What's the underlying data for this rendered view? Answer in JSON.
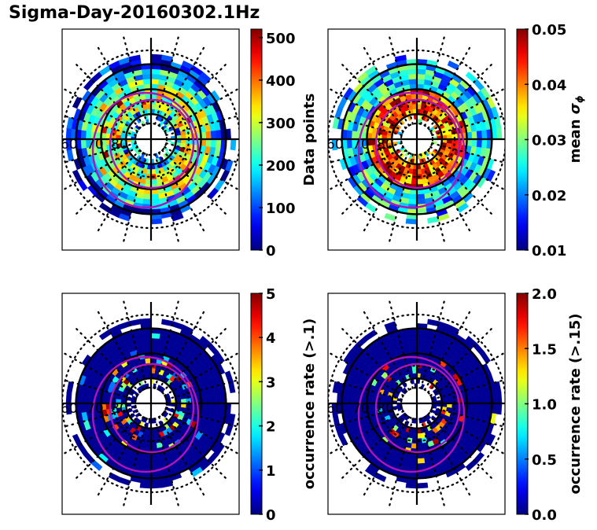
{
  "title": "Sigma-Day-20160302.1Hz",
  "chart_data": [
    {
      "type": "heatmap",
      "projection": "polar (MLAT/MLT dial)",
      "panel": "top-left",
      "lat_labels": [
        "60",
        "70",
        "80"
      ],
      "colorbar": {
        "label": "Data points",
        "min": 0,
        "max": 520,
        "ticks": [
          "0",
          "100",
          "200",
          "300",
          "400",
          "500"
        ],
        "tick_values": [
          0,
          100,
          200,
          300,
          400,
          500
        ],
        "colormap": "jet"
      },
      "mag_rings": true,
      "pattern": "ring of bins between ~57° and ~85° latitude; counts mostly 50–300, peaks ~400–500 near 70–75° on dusk/dawn sides",
      "seed": 1
    },
    {
      "type": "heatmap",
      "projection": "polar (MLAT/MLT dial)",
      "panel": "top-right",
      "lat_labels": [
        "60",
        "70",
        "80"
      ],
      "colorbar": {
        "label": "mean σ_ϕ",
        "label_main": "mean ",
        "label_symbol": "σ",
        "label_sub": "ϕ",
        "min": 0.01,
        "max": 0.05,
        "ticks": [
          "0.01",
          "0.02",
          "0.03",
          "0.04",
          "0.05"
        ],
        "tick_values": [
          0.01,
          0.02,
          0.03,
          0.04,
          0.05
        ],
        "colormap": "jet"
      },
      "mag_rings": true,
      "pattern": "outer bins ~0.015–0.03; inner ring 72–82° strongly elevated ~0.04–0.05",
      "seed": 2
    },
    {
      "type": "heatmap",
      "projection": "polar (MLAT/MLT dial)",
      "panel": "bottom-left",
      "lat_labels": [
        "60",
        "70",
        "80"
      ],
      "colorbar": {
        "label": "occurrence rate (>.1)",
        "min": 0,
        "max": 5,
        "ticks": [
          "0",
          "1",
          "2",
          "3",
          "4",
          "5"
        ],
        "tick_values": [
          0,
          1,
          2,
          3,
          4,
          5
        ],
        "colormap": "jet"
      },
      "mag_rings": true,
      "pattern": "mostly 0 everywhere; scattered bins 1–5 concentrated near 72–82° latitude",
      "seed": 3
    },
    {
      "type": "heatmap",
      "projection": "polar (MLAT/MLT dial)",
      "panel": "bottom-right",
      "lat_labels": [
        "60",
        "70",
        "80"
      ],
      "colorbar": {
        "label": "occurrence rate (>.15)",
        "min": 0.0,
        "max": 2.0,
        "ticks": [
          "0.0",
          "0.5",
          "1.0",
          "1.5",
          "2.0"
        ],
        "tick_values": [
          0.0,
          0.5,
          1.0,
          1.5,
          2.0
        ],
        "colormap": "jet"
      },
      "mag_rings": true,
      "pattern": "mostly 0; sparse bins 1–2 near 72–82° latitude",
      "seed": 4
    }
  ]
}
